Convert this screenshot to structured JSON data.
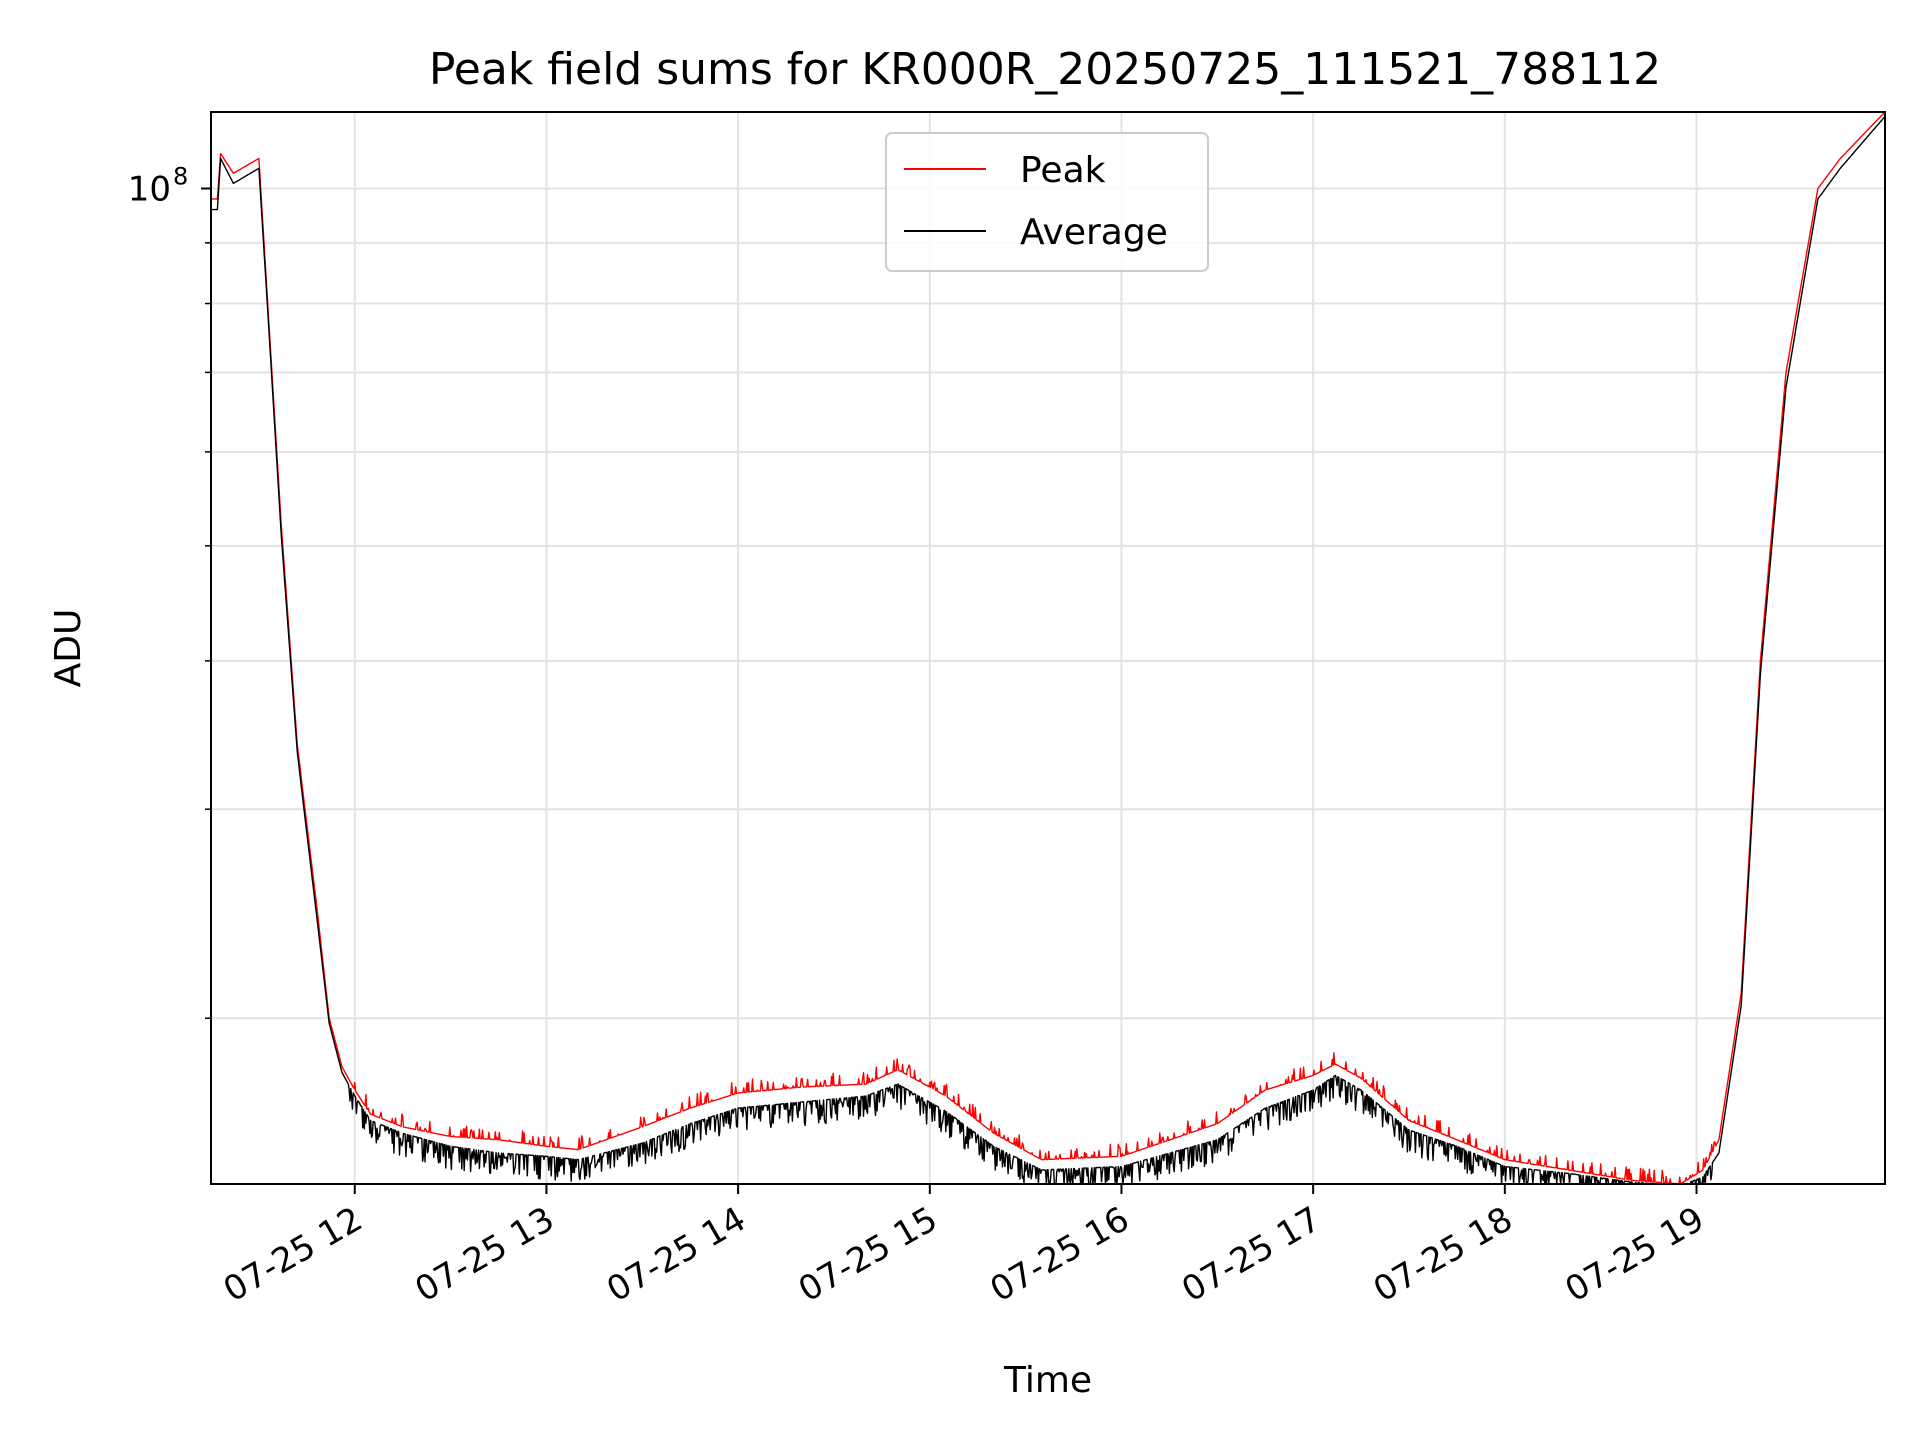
{
  "chart_data": {
    "type": "line",
    "title": "Peak field sums for KR000R_20250725_111521_788112",
    "xlabel": "Time",
    "ylabel": "ADU",
    "x_ticks": [
      "07-25 12",
      "07-25 13",
      "07-25 14",
      "07-25 15",
      "07-25 16",
      "07-25 17",
      "07-25 18",
      "07-25 19"
    ],
    "x_tick_times": [
      "2025-07-25 12:00",
      "2025-07-25 13:00",
      "2025-07-25 14:00",
      "2025-07-25 15:00",
      "2025-07-25 16:00",
      "2025-07-25 17:00",
      "2025-07-25 18:00",
      "2025-07-25 19:00"
    ],
    "xlim": [
      "2025-07-25 11:15",
      "2025-07-25 19:59"
    ],
    "y_scale": "log",
    "ylim": [
      14500000,
      116000000
    ],
    "y_major_ticks": [
      {
        "value": 100000000,
        "base": "10",
        "exp": "8"
      }
    ],
    "y_minor_ticks": [
      20000000,
      30000000,
      40000000,
      50000000,
      60000000,
      70000000,
      80000000,
      90000000
    ],
    "grid": true,
    "legend_position": "upper center",
    "legend": [
      {
        "name": "Peak",
        "color": "#ff0000"
      },
      {
        "name": "Average",
        "color": "#000000"
      }
    ],
    "series": [
      {
        "name": "Peak",
        "color": "#ff0000",
        "x": [
          "2025-07-25 11:15",
          "2025-07-25 11:17",
          "2025-07-25 11:18",
          "2025-07-25 11:22",
          "2025-07-25 11:30",
          "2025-07-25 11:33",
          "2025-07-25 11:37",
          "2025-07-25 11:42",
          "2025-07-25 11:48",
          "2025-07-25 11:52",
          "2025-07-25 11:56",
          "2025-07-25 12:00",
          "2025-07-25 12:05",
          "2025-07-25 12:15",
          "2025-07-25 12:30",
          "2025-07-25 12:45",
          "2025-07-25 13:00",
          "2025-07-25 13:10",
          "2025-07-25 13:30",
          "2025-07-25 13:45",
          "2025-07-25 14:00",
          "2025-07-25 14:20",
          "2025-07-25 14:40",
          "2025-07-25 14:50",
          "2025-07-25 15:05",
          "2025-07-25 15:20",
          "2025-07-25 15:35",
          "2025-07-25 16:00",
          "2025-07-25 16:30",
          "2025-07-25 16:45",
          "2025-07-25 17:00",
          "2025-07-25 17:07",
          "2025-07-25 17:15",
          "2025-07-25 17:30",
          "2025-07-25 17:45",
          "2025-07-25 18:00",
          "2025-07-25 18:20",
          "2025-07-25 18:40",
          "2025-07-25 18:55",
          "2025-07-25 19:02",
          "2025-07-25 19:07",
          "2025-07-25 19:14",
          "2025-07-25 19:20",
          "2025-07-25 19:28",
          "2025-07-25 19:38",
          "2025-07-25 19:45",
          "2025-07-25 19:59"
        ],
        "y": [
          98000000,
          98000000,
          107000000,
          103000000,
          106000000,
          78000000,
          52000000,
          34000000,
          25000000,
          20000000,
          18200000,
          17400000,
          16600000,
          16200000,
          15900000,
          15800000,
          15600000,
          15500000,
          16200000,
          16800000,
          17300000,
          17500000,
          17600000,
          18100000,
          17200000,
          16000000,
          15200000,
          15300000,
          16300000,
          17400000,
          17900000,
          18300000,
          17800000,
          16400000,
          15800000,
          15200000,
          14900000,
          14600000,
          14500000,
          14900000,
          15800000,
          21000000,
          40000000,
          70000000,
          100000000,
          106000000,
          116000000
        ]
      },
      {
        "name": "Average",
        "color": "#000000",
        "x": [
          "2025-07-25 11:15",
          "2025-07-25 11:17",
          "2025-07-25 11:18",
          "2025-07-25 11:22",
          "2025-07-25 11:30",
          "2025-07-25 11:33",
          "2025-07-25 11:37",
          "2025-07-25 11:42",
          "2025-07-25 11:48",
          "2025-07-25 11:52",
          "2025-07-25 11:56",
          "2025-07-25 12:00",
          "2025-07-25 12:05",
          "2025-07-25 12:15",
          "2025-07-25 12:30",
          "2025-07-25 12:45",
          "2025-07-25 13:00",
          "2025-07-25 13:10",
          "2025-07-25 13:30",
          "2025-07-25 13:45",
          "2025-07-25 14:00",
          "2025-07-25 14:20",
          "2025-07-25 14:40",
          "2025-07-25 14:50",
          "2025-07-25 15:05",
          "2025-07-25 15:20",
          "2025-07-25 15:35",
          "2025-07-25 16:00",
          "2025-07-25 16:30",
          "2025-07-25 16:45",
          "2025-07-25 17:00",
          "2025-07-25 17:07",
          "2025-07-25 17:15",
          "2025-07-25 17:30",
          "2025-07-25 17:45",
          "2025-07-25 18:00",
          "2025-07-25 18:20",
          "2025-07-25 18:40",
          "2025-07-25 18:55",
          "2025-07-25 19:02",
          "2025-07-25 19:07",
          "2025-07-25 19:14",
          "2025-07-25 19:20",
          "2025-07-25 19:28",
          "2025-07-25 19:38",
          "2025-07-25 19:45",
          "2025-07-25 19:59"
        ],
        "y": [
          96000000,
          96000000,
          106000000,
          101000000,
          104000000,
          77000000,
          51000000,
          33500000,
          24500000,
          19800000,
          18000000,
          17200000,
          16400000,
          16000000,
          15600000,
          15400000,
          15300000,
          15200000,
          15700000,
          16300000,
          16800000,
          17000000,
          17200000,
          17600000,
          16700000,
          15600000,
          14900000,
          15000000,
          15800000,
          16800000,
          17400000,
          17900000,
          17400000,
          16100000,
          15600000,
          15000000,
          14800000,
          14550000,
          14450000,
          14700000,
          15400000,
          20500000,
          39000000,
          68000000,
          98000000,
          104000000,
          115000000
        ]
      }
    ]
  }
}
